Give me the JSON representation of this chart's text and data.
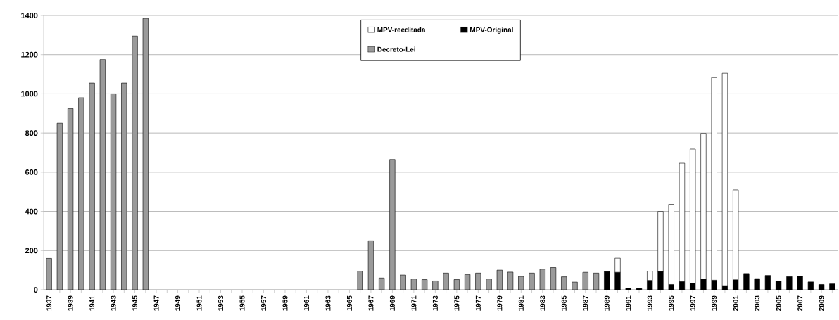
{
  "chart_data": {
    "type": "bar",
    "stacked": true,
    "categories": [
      "1937",
      null,
      "1939",
      null,
      "1941",
      null,
      "1943",
      null,
      "1945",
      null,
      "1947",
      null,
      "1949",
      null,
      "1951",
      null,
      "1953",
      null,
      "1955",
      null,
      "1957",
      null,
      "1959",
      null,
      "1961",
      null,
      "1963",
      null,
      "1965",
      null,
      "1967",
      null,
      "1969",
      null,
      "1971",
      null,
      "1973",
      null,
      "1975",
      null,
      "1977",
      null,
      "1979",
      null,
      "1981",
      null,
      "1983",
      null,
      "1985",
      null,
      "1987",
      null,
      "1989",
      null,
      "1991",
      null,
      "1993",
      null,
      "1995",
      null,
      "1997",
      null,
      "1999",
      null,
      "2001",
      null,
      "2003",
      null,
      "2005",
      null,
      "2007",
      null,
      "2009",
      null
    ],
    "series": [
      {
        "name": "MPV-Original",
        "color": "#000000",
        "values": [
          null,
          null,
          null,
          null,
          null,
          null,
          null,
          null,
          null,
          null,
          null,
          null,
          null,
          null,
          null,
          null,
          null,
          null,
          null,
          null,
          null,
          null,
          null,
          null,
          null,
          null,
          null,
          null,
          null,
          null,
          null,
          null,
          null,
          null,
          null,
          null,
          null,
          null,
          null,
          null,
          null,
          null,
          null,
          null,
          null,
          null,
          null,
          null,
          null,
          null,
          null,
          null,
          93,
          89,
          8,
          7,
          48,
          93,
          27,
          42,
          33,
          55,
          49,
          21,
          51,
          83,
          57,
          73,
          43,
          67,
          69,
          40,
          27,
          30
        ]
      },
      {
        "name": "MPV-reeditada",
        "color": "#ffffff",
        "values": [
          null,
          null,
          null,
          null,
          null,
          null,
          null,
          null,
          null,
          null,
          null,
          null,
          null,
          null,
          null,
          null,
          null,
          null,
          null,
          null,
          null,
          null,
          null,
          null,
          null,
          null,
          null,
          null,
          null,
          null,
          null,
          null,
          null,
          null,
          null,
          null,
          null,
          null,
          null,
          null,
          null,
          null,
          null,
          null,
          null,
          null,
          null,
          null,
          null,
          null,
          null,
          null,
          null,
          72,
          null,
          null,
          47,
          307,
          409,
          604,
          685,
          743,
          1034,
          1084,
          459,
          null,
          null,
          null,
          null,
          null,
          null,
          null,
          null,
          null
        ]
      },
      {
        "name": "Decreto-Lei",
        "color": "#9a9a9a",
        "values": [
          160,
          850,
          925,
          980,
          1055,
          1175,
          1000,
          1055,
          1295,
          1385,
          null,
          null,
          null,
          null,
          null,
          null,
          null,
          null,
          null,
          null,
          null,
          null,
          null,
          null,
          null,
          null,
          null,
          null,
          null,
          95,
          250,
          60,
          665,
          75,
          55,
          52,
          45,
          85,
          52,
          78,
          85,
          55,
          100,
          90,
          68,
          85,
          105,
          113,
          66,
          39,
          89,
          85,
          null,
          null,
          null,
          null,
          null,
          null,
          null,
          null,
          null,
          null,
          null,
          null,
          null,
          null,
          null,
          null,
          null,
          null,
          null,
          null,
          null,
          null
        ]
      }
    ],
    "ylim": [
      0,
      1400
    ],
    "yticks": [
      0,
      200,
      400,
      600,
      800,
      1000,
      1200,
      1400
    ],
    "grid": "y",
    "legend": "top"
  }
}
